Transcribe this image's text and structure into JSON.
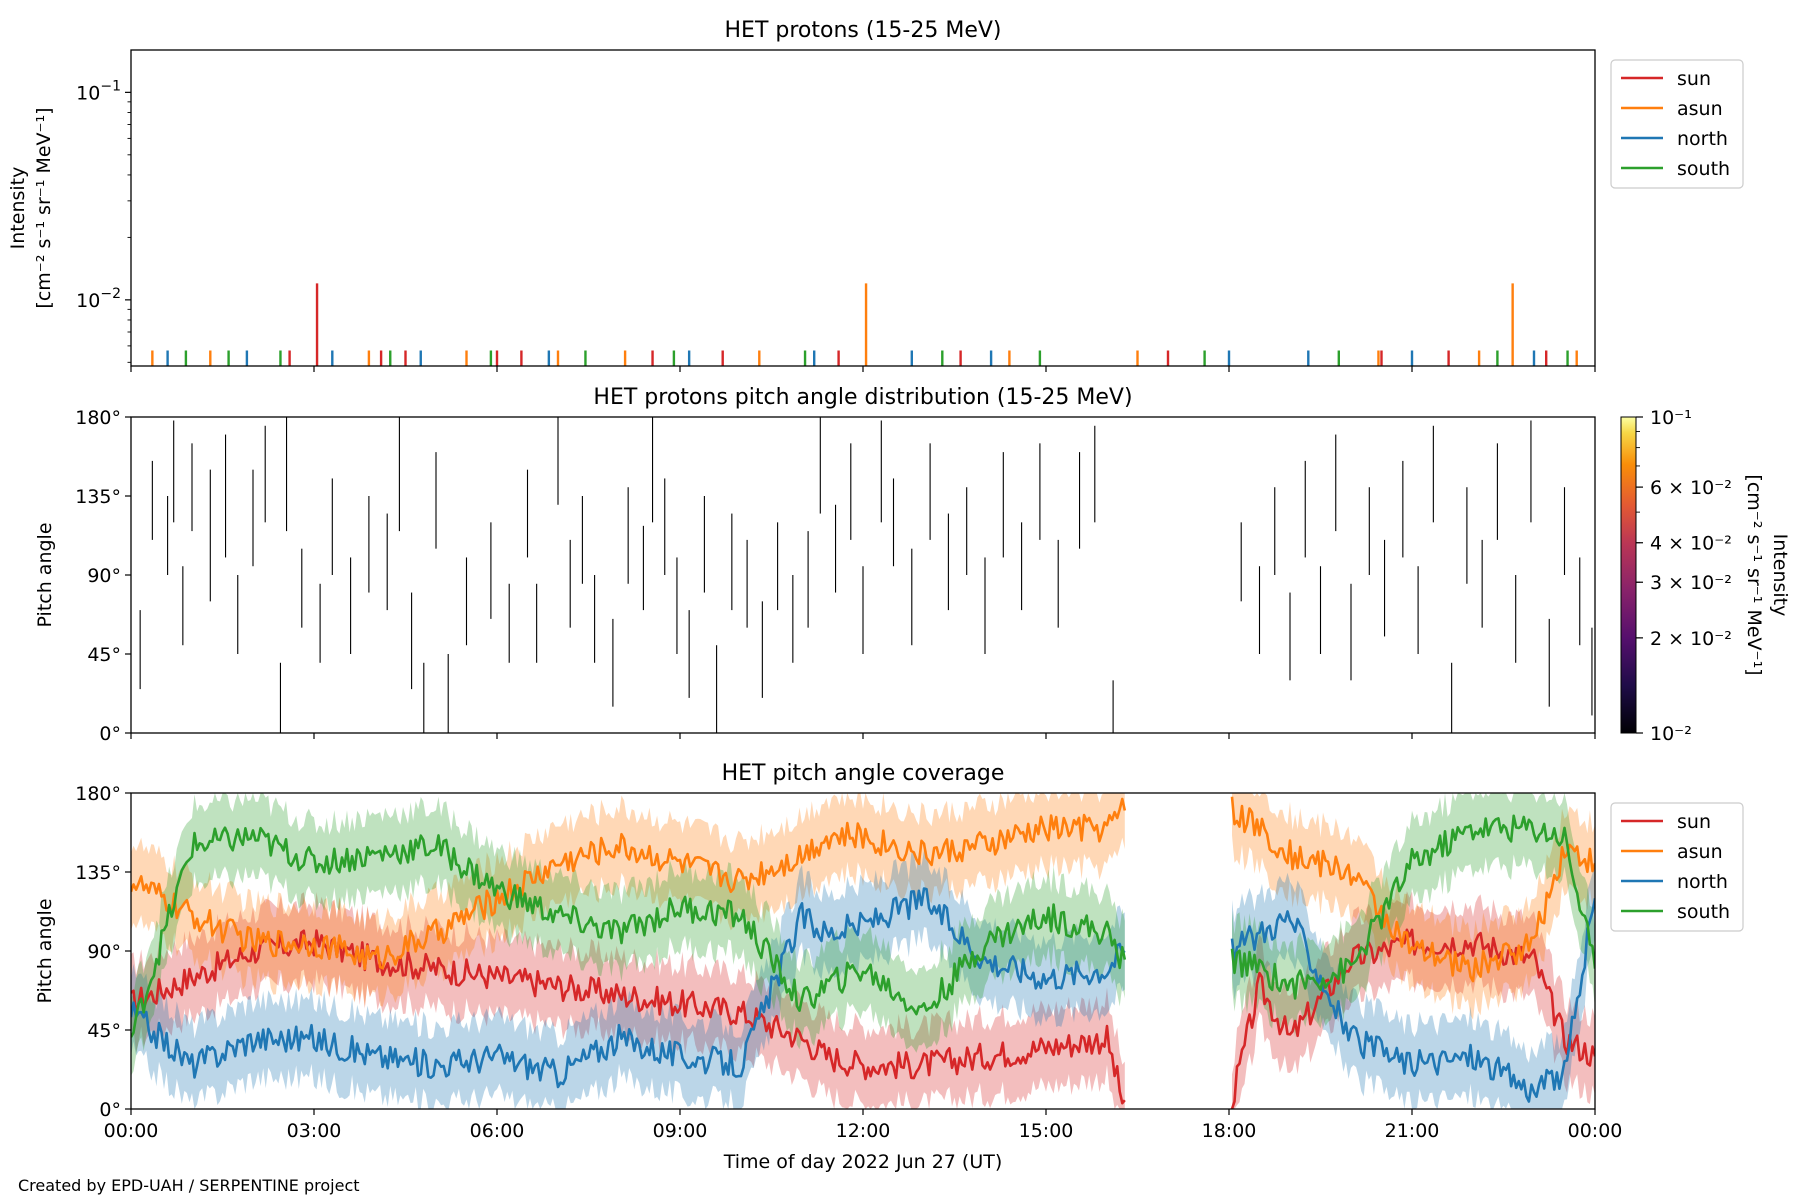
{
  "colors": {
    "sun": "#d62728",
    "asun": "#ff7f0e",
    "north": "#1f77b4",
    "south": "#2ca02c",
    "pad_bars": "#000000"
  },
  "footer": "Created by EPD-UAH / SERPENTINE project",
  "xlabel": "Time of day 2022 Jun 27 (UT)",
  "x_ticks": [
    "00:00",
    "03:00",
    "06:00",
    "09:00",
    "12:00",
    "15:00",
    "18:00",
    "21:00",
    "00:00"
  ],
  "chart_data": [
    {
      "type": "line",
      "title": "HET protons (15-25 MeV)",
      "ylabel_line1": "Intensity",
      "ylabel_line2": "[cm⁻² s⁻¹ sr⁻¹ MeV⁻¹]",
      "yscale": "log",
      "ylim": [
        0.0048,
        0.16
      ],
      "y_ticks": [
        {
          "value": 0.1,
          "base": "10",
          "exp": "−1"
        },
        {
          "value": 0.01,
          "base": "10",
          "exp": "−2"
        }
      ],
      "xlim_hours": [
        0,
        24
      ],
      "legend": {
        "position": "outside-right",
        "entries": [
          "sun",
          "asun",
          "north",
          "south"
        ]
      },
      "series": [
        {
          "name": "sun",
          "spikes": [
            {
              "t": 2.6,
              "v": 0.0057
            },
            {
              "t": 3.05,
              "v": 0.012
            },
            {
              "t": 4.1,
              "v": 0.0057
            },
            {
              "t": 4.5,
              "v": 0.0057
            },
            {
              "t": 6.0,
              "v": 0.0057
            },
            {
              "t": 6.4,
              "v": 0.0057
            },
            {
              "t": 8.55,
              "v": 0.0057
            },
            {
              "t": 9.7,
              "v": 0.0057
            },
            {
              "t": 11.6,
              "v": 0.0057
            },
            {
              "t": 13.6,
              "v": 0.0057
            },
            {
              "t": 17.0,
              "v": 0.0057
            },
            {
              "t": 20.5,
              "v": 0.0057
            },
            {
              "t": 21.6,
              "v": 0.0057
            },
            {
              "t": 23.2,
              "v": 0.0057
            }
          ]
        },
        {
          "name": "asun",
          "spikes": [
            {
              "t": 0.35,
              "v": 0.0057
            },
            {
              "t": 1.3,
              "v": 0.0057
            },
            {
              "t": 3.9,
              "v": 0.0057
            },
            {
              "t": 5.5,
              "v": 0.0057
            },
            {
              "t": 7.0,
              "v": 0.0057
            },
            {
              "t": 8.1,
              "v": 0.0057
            },
            {
              "t": 10.3,
              "v": 0.0057
            },
            {
              "t": 12.05,
              "v": 0.012
            },
            {
              "t": 14.4,
              "v": 0.0057
            },
            {
              "t": 16.5,
              "v": 0.0057
            },
            {
              "t": 20.45,
              "v": 0.0057
            },
            {
              "t": 22.1,
              "v": 0.0057
            },
            {
              "t": 22.65,
              "v": 0.012
            },
            {
              "t": 23.7,
              "v": 0.0057
            }
          ]
        },
        {
          "name": "north",
          "spikes": [
            {
              "t": 0.6,
              "v": 0.0057
            },
            {
              "t": 1.9,
              "v": 0.0057
            },
            {
              "t": 3.3,
              "v": 0.0057
            },
            {
              "t": 4.75,
              "v": 0.0057
            },
            {
              "t": 6.85,
              "v": 0.0057
            },
            {
              "t": 9.15,
              "v": 0.0057
            },
            {
              "t": 11.2,
              "v": 0.0057
            },
            {
              "t": 12.8,
              "v": 0.0057
            },
            {
              "t": 14.1,
              "v": 0.0057
            },
            {
              "t": 18.0,
              "v": 0.0057
            },
            {
              "t": 19.3,
              "v": 0.0057
            },
            {
              "t": 21.0,
              "v": 0.0057
            },
            {
              "t": 23.0,
              "v": 0.0057
            }
          ]
        },
        {
          "name": "south",
          "spikes": [
            {
              "t": 0.9,
              "v": 0.0057
            },
            {
              "t": 1.6,
              "v": 0.0057
            },
            {
              "t": 2.45,
              "v": 0.0057
            },
            {
              "t": 4.25,
              "v": 0.0057
            },
            {
              "t": 5.9,
              "v": 0.0057
            },
            {
              "t": 7.45,
              "v": 0.0057
            },
            {
              "t": 8.9,
              "v": 0.0057
            },
            {
              "t": 11.05,
              "v": 0.0057
            },
            {
              "t": 13.3,
              "v": 0.0057
            },
            {
              "t": 14.9,
              "v": 0.0057
            },
            {
              "t": 17.6,
              "v": 0.0057
            },
            {
              "t": 19.8,
              "v": 0.0057
            },
            {
              "t": 22.4,
              "v": 0.0057
            },
            {
              "t": 23.55,
              "v": 0.0057
            }
          ]
        }
      ]
    },
    {
      "type": "heatmap",
      "title": "HET protons pitch angle distribution (15-25 MeV)",
      "ylabel": "Pitch angle",
      "ylim": [
        0,
        180
      ],
      "y_ticks": [
        "0°",
        "45°",
        "90°",
        "135°",
        "180°"
      ],
      "xlim_hours": [
        0,
        24
      ],
      "colorbar": {
        "label_line1": "Intensity",
        "label_line2": "[cm⁻² s⁻¹ sr⁻¹ MeV⁻¹]",
        "scale": "log",
        "range": [
          0.01,
          0.1
        ],
        "ticks": [
          {
            "value": 0.1,
            "text": "10⁻¹"
          },
          {
            "value": 0.06,
            "text": "6 × 10⁻²"
          },
          {
            "value": 0.04,
            "text": "4 × 10⁻²"
          },
          {
            "value": 0.03,
            "text": "3 × 10⁻²"
          },
          {
            "value": 0.02,
            "text": "2 × 10⁻²"
          },
          {
            "value": 0.01,
            "text": "10⁻²"
          }
        ],
        "colormap": "inferno"
      },
      "cells": [
        {
          "t": 0.15,
          "lo": 25,
          "hi": 70
        },
        {
          "t": 0.35,
          "lo": 110,
          "hi": 155
        },
        {
          "t": 0.6,
          "lo": 90,
          "hi": 135
        },
        {
          "t": 0.7,
          "lo": 120,
          "hi": 178
        },
        {
          "t": 0.85,
          "lo": 50,
          "hi": 95
        },
        {
          "t": 1.0,
          "lo": 115,
          "hi": 165
        },
        {
          "t": 1.3,
          "lo": 75,
          "hi": 150
        },
        {
          "t": 1.55,
          "lo": 100,
          "hi": 170
        },
        {
          "t": 1.75,
          "lo": 45,
          "hi": 90
        },
        {
          "t": 2.0,
          "lo": 95,
          "hi": 150
        },
        {
          "t": 2.2,
          "lo": 120,
          "hi": 175
        },
        {
          "t": 2.45,
          "lo": 0,
          "hi": 40
        },
        {
          "t": 2.55,
          "lo": 115,
          "hi": 180
        },
        {
          "t": 2.8,
          "lo": 60,
          "hi": 105
        },
        {
          "t": 3.1,
          "lo": 40,
          "hi": 85
        },
        {
          "t": 3.3,
          "lo": 90,
          "hi": 145
        },
        {
          "t": 3.6,
          "lo": 45,
          "hi": 100
        },
        {
          "t": 3.9,
          "lo": 80,
          "hi": 135
        },
        {
          "t": 4.2,
          "lo": 70,
          "hi": 125
        },
        {
          "t": 4.4,
          "lo": 115,
          "hi": 180
        },
        {
          "t": 4.6,
          "lo": 25,
          "hi": 80
        },
        {
          "t": 4.8,
          "lo": 0,
          "hi": 40
        },
        {
          "t": 5.0,
          "lo": 105,
          "hi": 160
        },
        {
          "t": 5.2,
          "lo": 0,
          "hi": 45
        },
        {
          "t": 5.5,
          "lo": 50,
          "hi": 100
        },
        {
          "t": 5.9,
          "lo": 65,
          "hi": 120
        },
        {
          "t": 6.2,
          "lo": 40,
          "hi": 85
        },
        {
          "t": 6.5,
          "lo": 100,
          "hi": 150
        },
        {
          "t": 6.65,
          "lo": 40,
          "hi": 85
        },
        {
          "t": 7.0,
          "lo": 130,
          "hi": 180
        },
        {
          "t": 7.2,
          "lo": 60,
          "hi": 110
        },
        {
          "t": 7.4,
          "lo": 85,
          "hi": 135
        },
        {
          "t": 7.6,
          "lo": 40,
          "hi": 90
        },
        {
          "t": 7.9,
          "lo": 15,
          "hi": 65
        },
        {
          "t": 8.15,
          "lo": 85,
          "hi": 140
        },
        {
          "t": 8.4,
          "lo": 70,
          "hi": 118
        },
        {
          "t": 8.55,
          "lo": 120,
          "hi": 180
        },
        {
          "t": 8.75,
          "lo": 90,
          "hi": 145
        },
        {
          "t": 8.95,
          "lo": 45,
          "hi": 100
        },
        {
          "t": 9.15,
          "lo": 20,
          "hi": 70
        },
        {
          "t": 9.4,
          "lo": 80,
          "hi": 135
        },
        {
          "t": 9.6,
          "lo": 0,
          "hi": 50
        },
        {
          "t": 9.85,
          "lo": 70,
          "hi": 125
        },
        {
          "t": 10.1,
          "lo": 60,
          "hi": 110
        },
        {
          "t": 10.35,
          "lo": 20,
          "hi": 75
        },
        {
          "t": 10.6,
          "lo": 70,
          "hi": 120
        },
        {
          "t": 10.85,
          "lo": 40,
          "hi": 90
        },
        {
          "t": 11.1,
          "lo": 60,
          "hi": 115
        },
        {
          "t": 11.3,
          "lo": 125,
          "hi": 180
        },
        {
          "t": 11.55,
          "lo": 80,
          "hi": 130
        },
        {
          "t": 11.8,
          "lo": 110,
          "hi": 165
        },
        {
          "t": 12.0,
          "lo": 45,
          "hi": 95
        },
        {
          "t": 12.3,
          "lo": 120,
          "hi": 178
        },
        {
          "t": 12.5,
          "lo": 95,
          "hi": 145
        },
        {
          "t": 12.8,
          "lo": 50,
          "hi": 105
        },
        {
          "t": 13.1,
          "lo": 110,
          "hi": 165
        },
        {
          "t": 13.4,
          "lo": 70,
          "hi": 125
        },
        {
          "t": 13.7,
          "lo": 90,
          "hi": 140
        },
        {
          "t": 14.0,
          "lo": 45,
          "hi": 100
        },
        {
          "t": 14.3,
          "lo": 100,
          "hi": 160
        },
        {
          "t": 14.6,
          "lo": 70,
          "hi": 120
        },
        {
          "t": 14.9,
          "lo": 110,
          "hi": 165
        },
        {
          "t": 15.2,
          "lo": 60,
          "hi": 110
        },
        {
          "t": 15.55,
          "lo": 105,
          "hi": 160
        },
        {
          "t": 15.8,
          "lo": 120,
          "hi": 175
        },
        {
          "t": 16.1,
          "lo": 0,
          "hi": 30
        },
        {
          "t": 18.2,
          "lo": 75,
          "hi": 120
        },
        {
          "t": 18.5,
          "lo": 45,
          "hi": 95
        },
        {
          "t": 18.75,
          "lo": 90,
          "hi": 140
        },
        {
          "t": 19.0,
          "lo": 30,
          "hi": 80
        },
        {
          "t": 19.25,
          "lo": 100,
          "hi": 155
        },
        {
          "t": 19.5,
          "lo": 45,
          "hi": 95
        },
        {
          "t": 19.75,
          "lo": 115,
          "hi": 170
        },
        {
          "t": 20.0,
          "lo": 30,
          "hi": 85
        },
        {
          "t": 20.3,
          "lo": 90,
          "hi": 140
        },
        {
          "t": 20.55,
          "lo": 55,
          "hi": 110
        },
        {
          "t": 20.85,
          "lo": 100,
          "hi": 155
        },
        {
          "t": 21.1,
          "lo": 45,
          "hi": 95
        },
        {
          "t": 21.35,
          "lo": 120,
          "hi": 175
        },
        {
          "t": 21.65,
          "lo": 0,
          "hi": 40
        },
        {
          "t": 21.9,
          "lo": 85,
          "hi": 140
        },
        {
          "t": 22.15,
          "lo": 60,
          "hi": 110
        },
        {
          "t": 22.4,
          "lo": 110,
          "hi": 165
        },
        {
          "t": 22.7,
          "lo": 40,
          "hi": 90
        },
        {
          "t": 22.95,
          "lo": 120,
          "hi": 178
        },
        {
          "t": 23.25,
          "lo": 15,
          "hi": 65
        },
        {
          "t": 23.5,
          "lo": 90,
          "hi": 140
        },
        {
          "t": 23.75,
          "lo": 50,
          "hi": 100
        },
        {
          "t": 23.95,
          "lo": 10,
          "hi": 60
        }
      ]
    },
    {
      "type": "line",
      "title": "HET pitch angle coverage",
      "ylabel": "Pitch angle",
      "ylim": [
        0,
        180
      ],
      "y_ticks": [
        "0°",
        "45°",
        "90°",
        "135°",
        "180°"
      ],
      "xlim_hours": [
        0,
        24
      ],
      "band_halfwidth_deg": 22,
      "data_gap_hours": [
        16.3,
        18.05
      ],
      "legend": {
        "position": "outside-right",
        "entries": [
          "sun",
          "asun",
          "north",
          "south"
        ]
      },
      "series": [
        {
          "name": "sun",
          "t": [
            0,
            1,
            2,
            3,
            4,
            5,
            6,
            7,
            8,
            9,
            10,
            11,
            11.4,
            12,
            13,
            14,
            15,
            16,
            16.25,
            18.05,
            18.5,
            19,
            20,
            21,
            22,
            23,
            23.5,
            24
          ],
          "values": [
            60,
            75,
            90,
            95,
            85,
            80,
            75,
            70,
            65,
            60,
            55,
            40,
            30,
            25,
            25,
            30,
            35,
            40,
            5,
            5,
            70,
            40,
            85,
            95,
            95,
            85,
            40,
            30
          ]
        },
        {
          "name": "asun",
          "t": [
            0,
            1,
            2,
            3,
            4,
            5,
            6,
            7,
            8,
            9,
            10,
            11,
            11.4,
            12,
            13,
            14,
            15,
            16,
            16.25,
            18.05,
            18.5,
            19,
            20,
            21,
            22,
            23,
            23.5,
            24
          ],
          "values": [
            130,
            110,
            95,
            95,
            85,
            100,
            120,
            140,
            150,
            140,
            130,
            145,
            155,
            155,
            145,
            150,
            160,
            160,
            170,
            170,
            160,
            145,
            135,
            90,
            80,
            95,
            150,
            140
          ]
        },
        {
          "name": "north",
          "t": [
            0,
            1,
            2,
            3,
            4,
            5,
            6,
            7,
            8,
            9,
            10,
            11,
            11.4,
            12,
            13,
            14,
            15,
            16,
            16.25,
            18.05,
            18.5,
            19,
            20,
            21,
            22,
            23,
            23.5,
            24
          ],
          "values": [
            55,
            25,
            40,
            40,
            30,
            25,
            30,
            20,
            40,
            30,
            25,
            110,
            100,
            105,
            120,
            85,
            75,
            80,
            90,
            90,
            100,
            110,
            40,
            25,
            30,
            10,
            20,
            120
          ]
        },
        {
          "name": "south",
          "t": [
            0,
            1,
            2,
            3,
            4,
            5,
            6,
            7,
            8,
            9,
            10,
            11,
            11.4,
            12,
            13,
            14,
            15,
            16,
            16.25,
            18.05,
            18.5,
            19,
            20,
            21,
            22,
            23,
            23.5,
            24
          ],
          "values": [
            40,
            150,
            155,
            140,
            145,
            150,
            125,
            110,
            100,
            115,
            110,
            60,
            70,
            80,
            55,
            95,
            110,
            100,
            85,
            85,
            80,
            70,
            80,
            140,
            160,
            160,
            155,
            80
          ]
        }
      ]
    }
  ]
}
